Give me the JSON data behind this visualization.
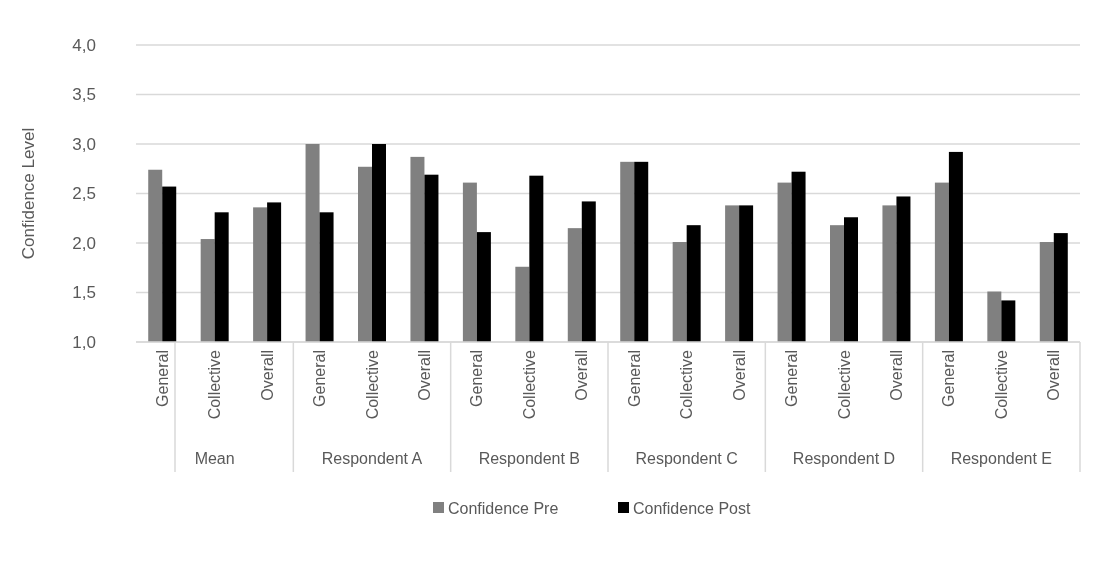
{
  "chart_data": {
    "type": "bar",
    "ylabel": "Confidence Level",
    "categories": [
      "General",
      "Collective",
      "Overall",
      "General",
      "Collective",
      "Overall",
      "General",
      "Collective",
      "Overall",
      "General",
      "Collective",
      "Overall",
      "General",
      "Collective",
      "Overall",
      "General",
      "Collective",
      "Overall"
    ],
    "annotations": [
      "Mean",
      "Respondent A",
      "Respondent B",
      "Respondent C",
      "Respondent D",
      "Respondent E"
    ],
    "series": [
      {
        "name": "Confidence Pre",
        "color": "#808080",
        "values": [
          2.74,
          2.04,
          2.36,
          3.0,
          2.77,
          2.87,
          2.61,
          1.76,
          2.15,
          2.82,
          2.01,
          2.38,
          2.61,
          2.18,
          2.38,
          2.61,
          1.51,
          2.01
        ]
      },
      {
        "name": "Confidence Post",
        "color": "#000000",
        "values": [
          2.57,
          2.31,
          2.41,
          2.31,
          3.0,
          2.69,
          2.11,
          2.68,
          2.42,
          2.82,
          2.18,
          2.38,
          2.72,
          2.26,
          2.47,
          2.92,
          1.42,
          2.1
        ]
      }
    ],
    "ylim": [
      1,
      4
    ],
    "yticks": [
      {
        "value": 1,
        "label": "1,0"
      },
      {
        "value": 1.5,
        "label": "1,5"
      },
      {
        "value": 2,
        "label": "2,0"
      },
      {
        "value": 2.5,
        "label": "2,5"
      },
      {
        "value": 3,
        "label": "3,0"
      },
      {
        "value": 3.5,
        "label": "3,5"
      },
      {
        "value": 4,
        "label": "4,0"
      }
    ],
    "grid": "y",
    "legend": "bottom"
  }
}
